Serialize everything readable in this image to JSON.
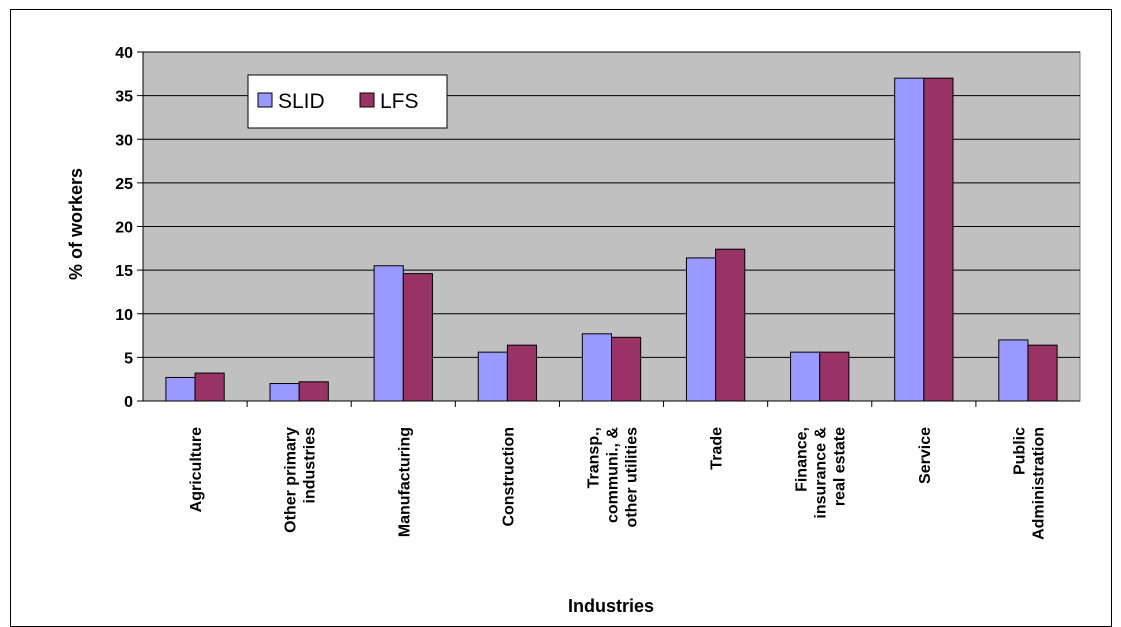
{
  "chart_data": {
    "type": "bar",
    "categories": [
      [
        "Agriculture"
      ],
      [
        "Other primary",
        "industries"
      ],
      [
        "Manufacturing"
      ],
      [
        "Construction"
      ],
      [
        "Transp.,",
        "communi., &",
        "other utilities"
      ],
      [
        "Trade"
      ],
      [
        "Finance,",
        "insurance &",
        "real estate"
      ],
      [
        "Service"
      ],
      [
        "Public",
        "Administration"
      ]
    ],
    "series": [
      {
        "name": "SLID",
        "color": "#9999ff",
        "values": [
          2.7,
          2.0,
          15.5,
          5.6,
          7.7,
          16.4,
          5.6,
          37.0,
          7.0
        ]
      },
      {
        "name": "LFS",
        "color": "#993366",
        "values": [
          3.2,
          2.2,
          14.6,
          6.4,
          7.3,
          17.4,
          5.6,
          37.0,
          6.4
        ]
      }
    ],
    "xlabel": "Industries",
    "ylabel": "% of workers",
    "ylim": [
      0,
      40
    ],
    "yticks": [
      0,
      5,
      10,
      15,
      20,
      25,
      30,
      35,
      40
    ],
    "grid": true,
    "legend_position": "top-left",
    "plot_background": "#c0c0c0"
  }
}
